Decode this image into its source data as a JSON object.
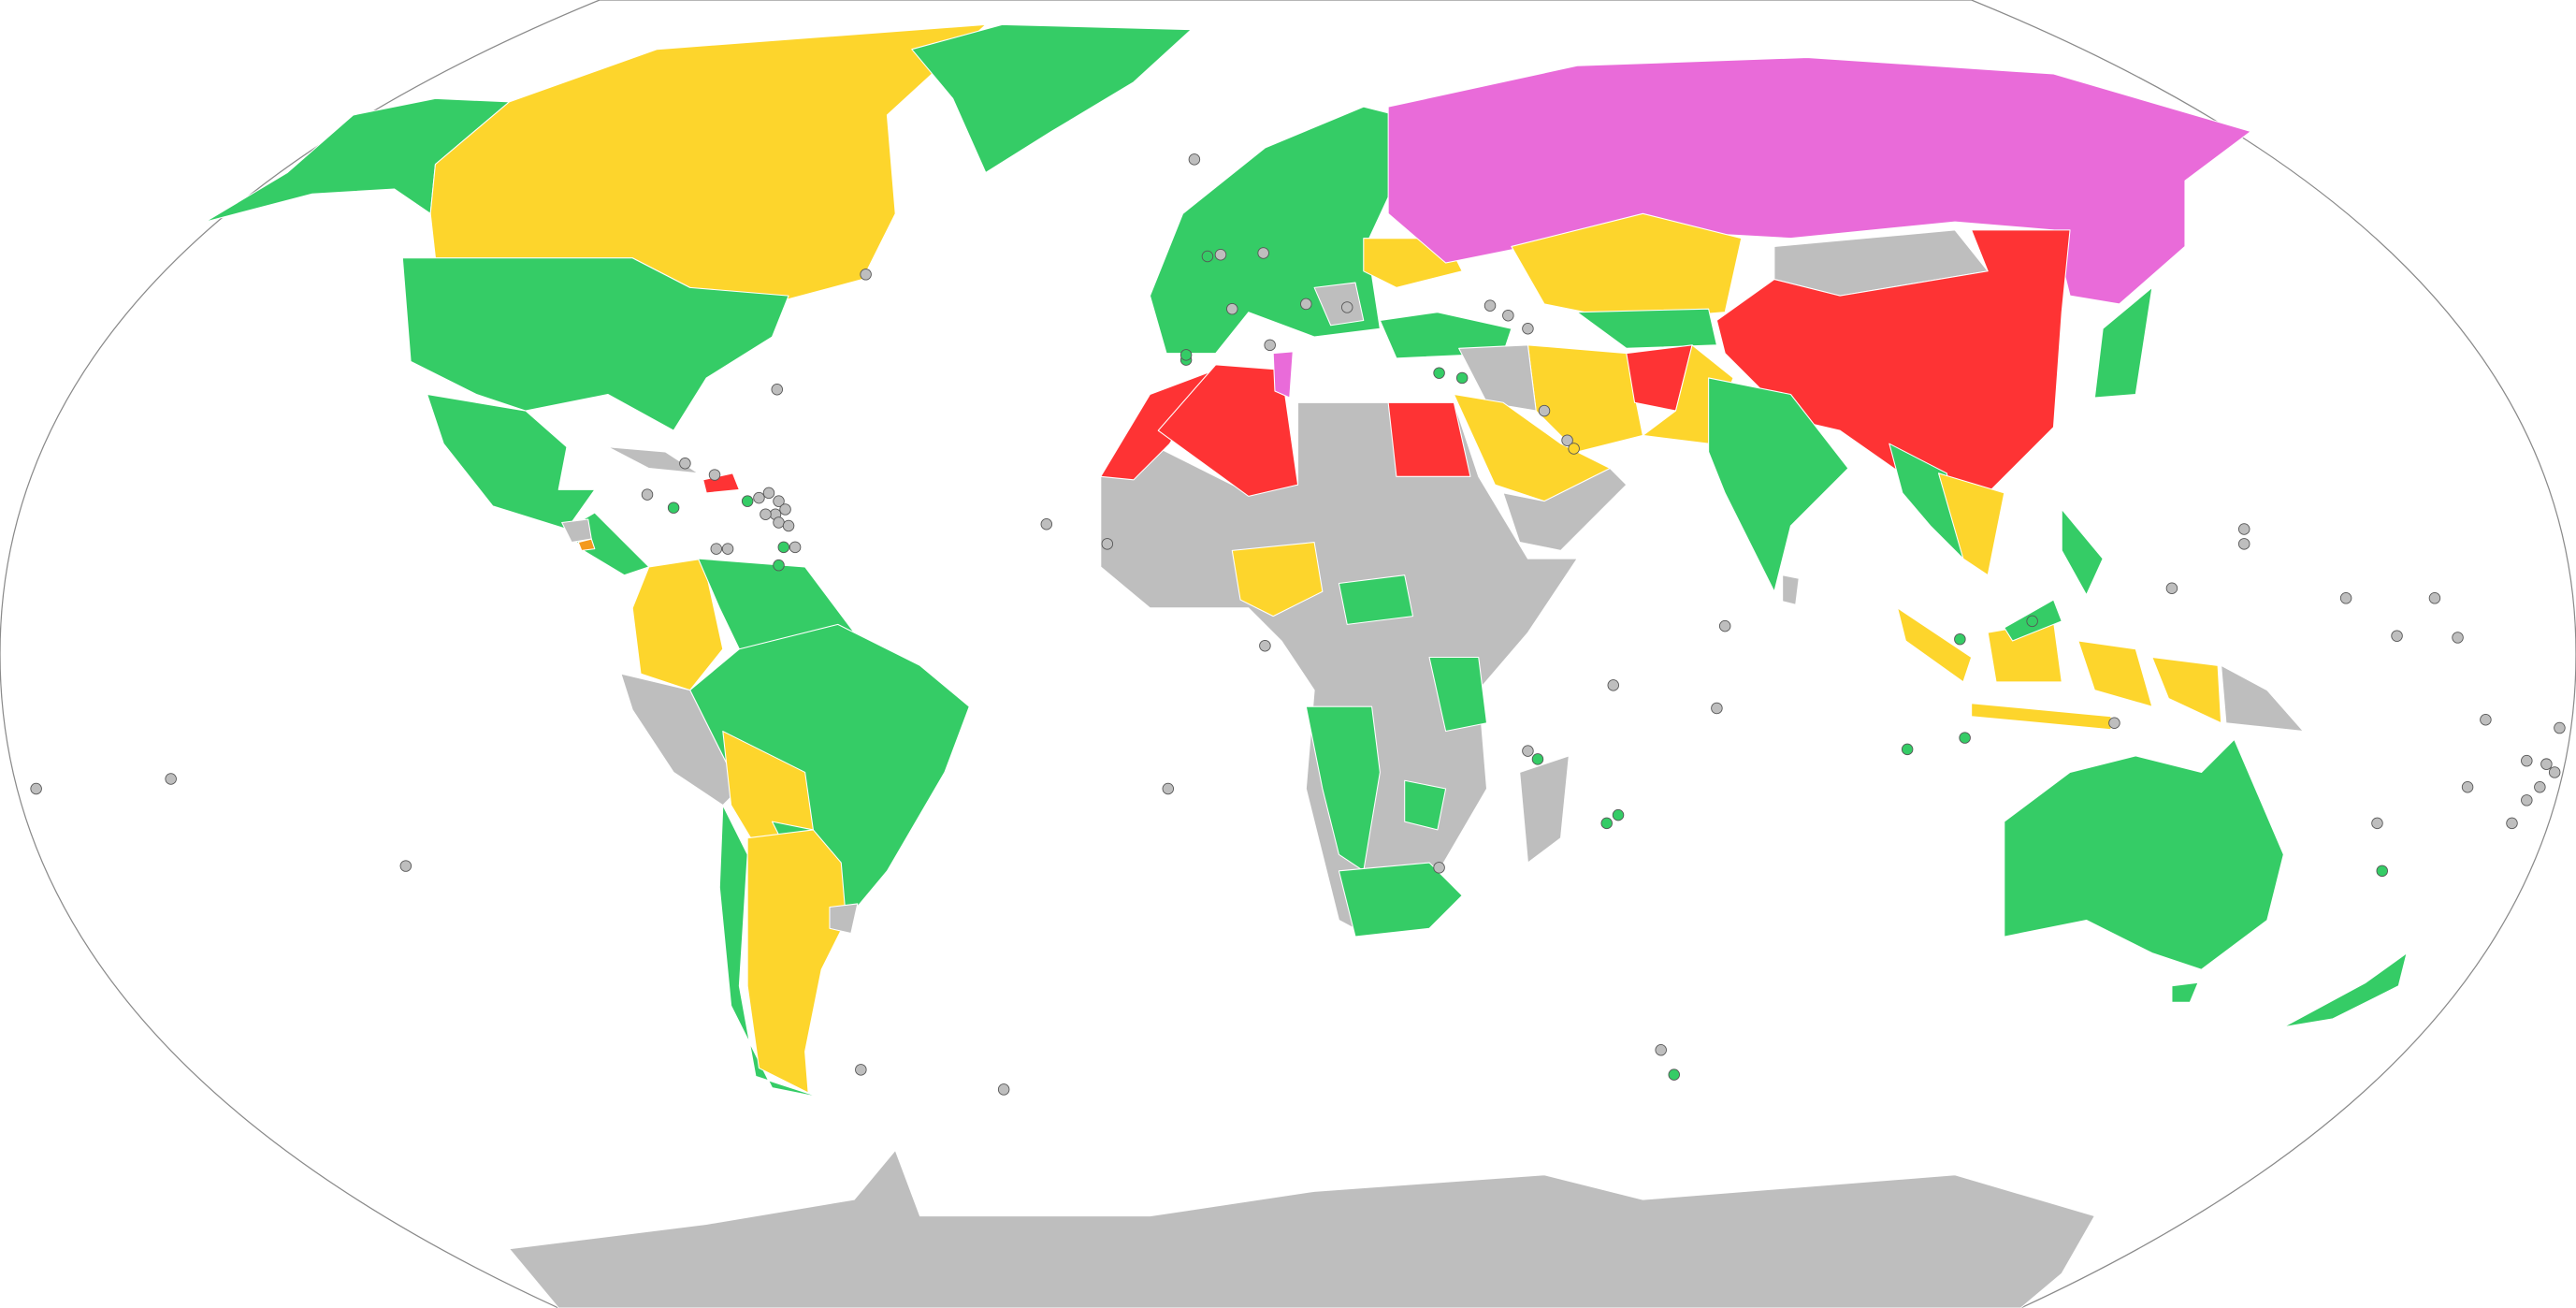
{
  "map": {
    "projection": "Robinson",
    "category_colors": {
      "green": "#35cc66",
      "yellow": "#fdd52c",
      "red": "#fe3334",
      "magenta": "#e96bd9",
      "gray": "#bebebe",
      "orange": "#f39a1e"
    },
    "ocean_color": "#ffffff",
    "frame_color": "#8a8a8a"
  }
}
